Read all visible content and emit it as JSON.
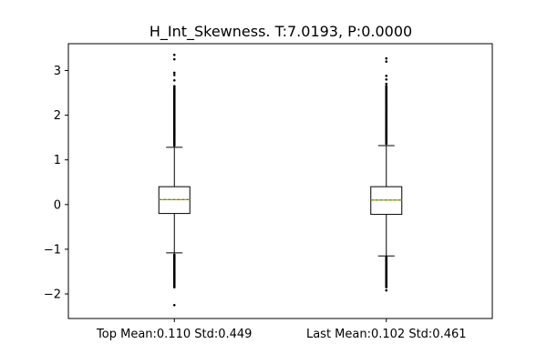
{
  "chart_data": {
    "type": "box",
    "title": "H_Int_Skewness. T:7.0193, P:0.0000",
    "xlabel": "",
    "ylabel": "",
    "ylim": [
      -2.55,
      3.6
    ],
    "yticks": [
      {
        "value": -2,
        "label": "−2"
      },
      {
        "value": -1,
        "label": "−1"
      },
      {
        "value": 0,
        "label": "0"
      },
      {
        "value": 1,
        "label": "1"
      },
      {
        "value": 2,
        "label": "2"
      },
      {
        "value": 3,
        "label": "3"
      }
    ],
    "grid": false,
    "categories": [
      "Top Mean:0.110 Std:0.449",
      "Last Mean:0.102 Std:0.461"
    ],
    "boxes": [
      {
        "whisker_low": -1.08,
        "q1": -0.2,
        "median": 0.11,
        "mean": 0.11,
        "q3": 0.4,
        "whisker_high": 1.28,
        "flier_low_range": [
          -1.85,
          -1.12
        ],
        "flier_high_range": [
          1.32,
          2.65
        ],
        "extra_fliers": [
          -2.25,
          2.78,
          2.9,
          2.95,
          3.25,
          3.35
        ]
      },
      {
        "whisker_low": -1.15,
        "q1": -0.22,
        "median": 0.1,
        "mean": 0.1,
        "q3": 0.4,
        "whisker_high": 1.32,
        "flier_low_range": [
          -1.85,
          -1.18
        ],
        "flier_high_range": [
          1.36,
          2.65
        ],
        "extra_fliers": [
          -1.92,
          2.7,
          2.8,
          2.88,
          3.2,
          3.27
        ]
      }
    ],
    "colors": {
      "box": "#000000",
      "median": "#ff7f0e",
      "mean": "#2ca02c",
      "flier": "#000000"
    }
  }
}
